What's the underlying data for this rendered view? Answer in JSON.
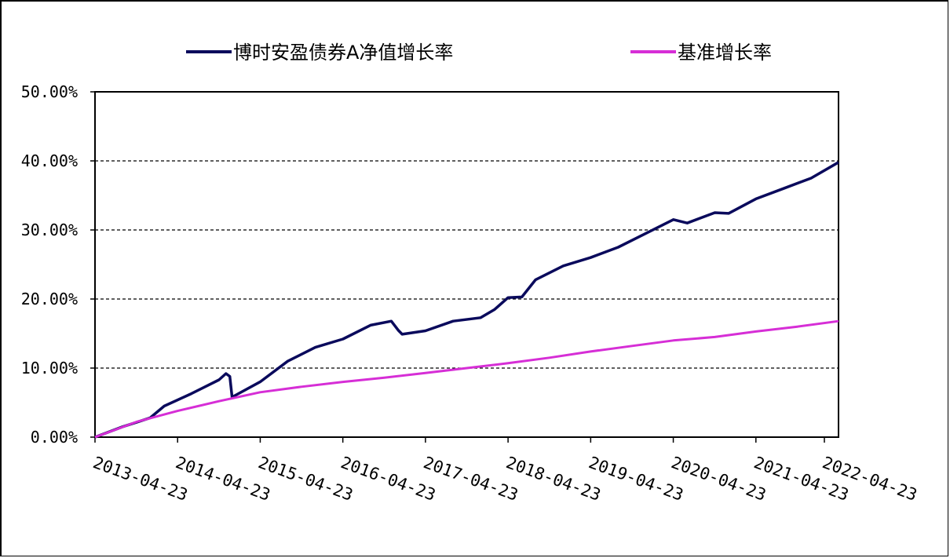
{
  "chart_data": {
    "type": "line",
    "title": "",
    "xlabel": "",
    "ylabel": "",
    "x_tick_labels": [
      "2013-04-23",
      "2014-04-23",
      "2015-04-23",
      "2016-04-23",
      "2017-04-23",
      "2018-04-23",
      "2019-04-23",
      "2020-04-23",
      "2021-04-23",
      "2022-04-23"
    ],
    "y_tick_labels": [
      "0.00%",
      "10.00%",
      "20.00%",
      "30.00%",
      "40.00%",
      "50.00%"
    ],
    "ylim": [
      0,
      50
    ],
    "xlim": [
      "2013-04-23",
      "2022-04-23"
    ],
    "grid": "horizontal dashed",
    "legend_position": "top",
    "series": [
      {
        "name": "博时安盈债券A净值增长率",
        "color": "#0a0a5c",
        "points": [
          [
            "2013-04-23",
            0.0
          ],
          [
            "2013-08-23",
            1.5
          ],
          [
            "2013-12-23",
            2.8
          ],
          [
            "2014-02-23",
            4.5
          ],
          [
            "2014-06-23",
            6.3
          ],
          [
            "2014-10-23",
            8.3
          ],
          [
            "2014-11-23",
            9.2
          ],
          [
            "2014-12-10",
            8.8
          ],
          [
            "2014-12-20",
            5.8
          ],
          [
            "2015-04-23",
            8.0
          ],
          [
            "2015-08-23",
            11.0
          ],
          [
            "2015-12-23",
            13.0
          ],
          [
            "2016-04-23",
            14.2
          ],
          [
            "2016-08-23",
            16.2
          ],
          [
            "2016-11-23",
            16.8
          ],
          [
            "2016-12-23",
            15.5
          ],
          [
            "2017-01-10",
            14.9
          ],
          [
            "2017-04-23",
            15.4
          ],
          [
            "2017-08-23",
            16.8
          ],
          [
            "2017-12-23",
            17.3
          ],
          [
            "2018-02-23",
            18.5
          ],
          [
            "2018-04-23",
            20.2
          ],
          [
            "2018-06-23",
            20.3
          ],
          [
            "2018-08-23",
            22.8
          ],
          [
            "2018-12-23",
            24.8
          ],
          [
            "2019-04-23",
            26.0
          ],
          [
            "2019-08-23",
            27.5
          ],
          [
            "2019-12-23",
            29.5
          ],
          [
            "2020-04-23",
            31.5
          ],
          [
            "2020-06-23",
            31.0
          ],
          [
            "2020-10-23",
            32.5
          ],
          [
            "2020-12-23",
            32.4
          ],
          [
            "2021-04-23",
            34.5
          ],
          [
            "2021-08-23",
            36.0
          ],
          [
            "2021-12-23",
            37.5
          ],
          [
            "2022-04-23",
            39.8
          ]
        ]
      },
      {
        "name": "基准增长率",
        "color": "#d62ed6",
        "points": [
          [
            "2013-04-23",
            0.0
          ],
          [
            "2013-10-23",
            2.2
          ],
          [
            "2014-04-23",
            3.8
          ],
          [
            "2014-10-23",
            5.2
          ],
          [
            "2015-04-23",
            6.5
          ],
          [
            "2015-10-23",
            7.3
          ],
          [
            "2016-04-23",
            8.0
          ],
          [
            "2016-10-23",
            8.6
          ],
          [
            "2017-04-23",
            9.3
          ],
          [
            "2017-10-23",
            10.0
          ],
          [
            "2018-04-23",
            10.7
          ],
          [
            "2018-10-23",
            11.5
          ],
          [
            "2019-04-23",
            12.4
          ],
          [
            "2019-10-23",
            13.2
          ],
          [
            "2020-04-23",
            14.0
          ],
          [
            "2020-10-23",
            14.5
          ],
          [
            "2021-04-23",
            15.3
          ],
          [
            "2021-10-23",
            16.0
          ],
          [
            "2022-04-23",
            16.8
          ]
        ]
      }
    ]
  }
}
